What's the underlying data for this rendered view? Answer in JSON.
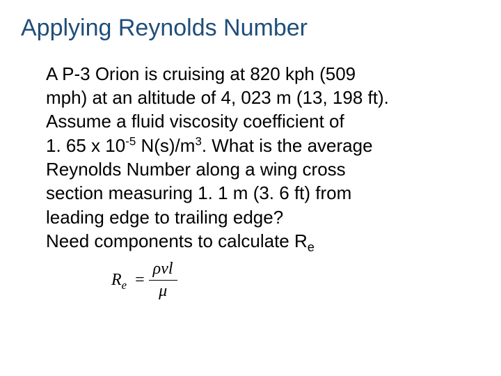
{
  "title": {
    "text": "Applying Reynolds Number",
    "color": "#1f4e79",
    "fontsize": 34
  },
  "body": {
    "color": "#000000",
    "fontsize": 26,
    "line1": "A P-3 Orion is cruising at 820 kph (509",
    "line2": "mph) at an altitude of 4, 023 m (13, 198 ft).",
    "line3": "Assume a fluid viscosity coefficient of",
    "line4a": "1. 65 x 10",
    "line4_sup": "-5",
    "line4b": " N(s)/m",
    "line4_sup2": "3",
    "line4c": ". What is the average",
    "line5": "Reynolds Number along a wing cross",
    "line6": "section measuring 1. 1 m (3. 6 ft) from",
    "line7": "leading edge to trailing edge?",
    "line8a": "Need components to calculate R",
    "line8_sub": "e"
  },
  "formula": {
    "fontsize": 24,
    "lhs_R": "R",
    "lhs_sub": "e",
    "eq": "=",
    "num": "ρvl",
    "den": "μ"
  }
}
